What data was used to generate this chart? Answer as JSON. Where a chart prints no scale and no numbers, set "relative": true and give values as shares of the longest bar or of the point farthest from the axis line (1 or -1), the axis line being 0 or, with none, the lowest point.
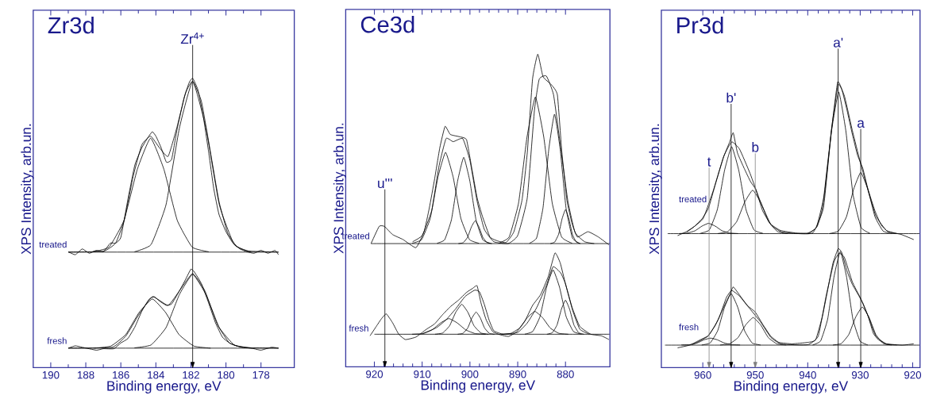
{
  "chart_data": [
    {
      "type": "line",
      "relative": true,
      "title": "Zr3d",
      "xlabel": "Binding energy, eV",
      "ylabel": "XPS Intensity, arb.un.",
      "xlim": [
        191,
        176.1
      ],
      "xticks": [
        190,
        188,
        186,
        184,
        182,
        180,
        178
      ],
      "tick_labels": "x",
      "ref_lines": [
        {
          "axis": "x",
          "value": 181.9,
          "label": "Zr$^{4+}$",
          "color": "#000000"
        }
      ],
      "series": [
        {
          "name": "treated",
          "color": "#000000",
          "x": [
            189,
            188.6,
            188.2,
            187.8,
            187.4,
            187,
            186.6,
            186.3,
            186,
            185.6,
            185.2,
            184.8,
            184.4,
            184.2,
            184,
            183.7,
            183.4,
            183.1,
            182.8,
            182.4,
            182.1,
            181.9,
            181.6,
            181.3,
            181,
            180.7,
            180.4,
            180,
            179.6,
            179.2,
            178.8,
            178.4,
            178,
            177.6,
            177.2,
            177
          ],
          "values": [
            0.4,
            0.39,
            0.41,
            0.395,
            0.405,
            0.4,
            0.43,
            0.43,
            0.45,
            0.58,
            0.7,
            0.76,
            0.8,
            0.815,
            0.8,
            0.76,
            0.71,
            0.72,
            0.82,
            0.93,
            0.985,
            1.0,
            0.96,
            0.87,
            0.75,
            0.62,
            0.53,
            0.47,
            0.43,
            0.41,
            0.4,
            0.395,
            0.405,
            0.395,
            0.405,
            0.39
          ]
        },
        {
          "color": "#000000",
          "x": [
            189,
            187,
            186.3,
            185.8,
            185.3,
            184.8,
            184.3,
            183.8,
            183.3,
            182.8,
            182.3,
            181.9,
            181.4,
            180.9,
            180.4,
            179.9,
            179.4,
            178.8,
            177
          ],
          "values": [
            0.399,
            0.402,
            0.43,
            0.51,
            0.66,
            0.77,
            0.8,
            0.76,
            0.73,
            0.83,
            0.95,
            0.99,
            0.92,
            0.75,
            0.575,
            0.465,
            0.42,
            0.403,
            0.399
          ]
        },
        {
          "color": "#000000",
          "x": [
            187.625,
            186.675,
            185.82,
            185.06,
            184.3,
            183.54,
            182.78,
            181.925,
            180.975
          ],
          "values": [
            0.4,
            0.416,
            0.509,
            0.685,
            0.793,
            0.685,
            0.509,
            0.416,
            0.4
          ]
        },
        {
          "color": "#000000",
          "x": [
            185.225,
            184.275,
            183.42,
            182.66,
            181.9,
            181.14,
            180.38,
            179.525,
            178.575
          ],
          "values": [
            0.4,
            0.425,
            0.563,
            0.827,
            0.989,
            0.827,
            0.563,
            0.425,
            0.4
          ]
        },
        {
          "color": "#000000",
          "x": [
            189,
            177
          ],
          "values": [
            0.399,
            0.399
          ]
        },
        {
          "name": "fresh",
          "color": "#000000",
          "x": [
            189,
            188.6,
            188.2,
            187.4,
            187,
            186.4,
            186,
            185.6,
            185.2,
            184.8,
            184.4,
            184.1,
            183.8,
            183.4,
            183.1,
            182.7,
            182.3,
            182,
            181.8,
            181.4,
            181,
            180.6,
            180.2,
            179.8,
            179.4,
            179,
            178.4,
            178,
            177.4,
            177
          ],
          "values": [
            0.067,
            0.075,
            0.07,
            0.06,
            0.065,
            0.065,
            0.085,
            0.1,
            0.14,
            0.195,
            0.235,
            0.245,
            0.23,
            0.215,
            0.22,
            0.26,
            0.305,
            0.34,
            0.33,
            0.29,
            0.225,
            0.155,
            0.105,
            0.085,
            0.075,
            0.07,
            0.065,
            0.06,
            0.07,
            0.067
          ]
        },
        {
          "color": "#000000",
          "x": [
            189,
            186.5,
            185.7,
            185,
            184.2,
            183.3,
            182.6,
            181.9,
            181.2,
            180.5,
            179.8,
            179,
            177
          ],
          "values": [
            0.067,
            0.07,
            0.11,
            0.18,
            0.245,
            0.215,
            0.27,
            0.325,
            0.265,
            0.15,
            0.085,
            0.069,
            0.067
          ]
        },
        {
          "color": "#000000",
          "x": [
            187.525,
            186.575,
            185.72,
            184.96,
            184.2,
            183.44,
            182.68,
            181.825,
            180.875
          ],
          "values": [
            0.067,
            0.074,
            0.114,
            0.19,
            0.237,
            0.19,
            0.114,
            0.074,
            0.067
          ]
        },
        {
          "color": "#000000",
          "x": [
            185.225,
            184.275,
            183.42,
            182.66,
            181.9,
            181.14,
            180.38,
            179.525,
            178.575
          ],
          "values": [
            0.068,
            0.078,
            0.138,
            0.252,
            0.322,
            0.252,
            0.138,
            0.078,
            0.068
          ]
        },
        {
          "color": "#000000",
          "x": [
            189,
            177
          ],
          "values": [
            0.067,
            0.067
          ]
        }
      ]
    },
    {
      "type": "line",
      "relative": true,
      "title": "Ce3d",
      "xlabel": "Binding energy, eV",
      "ylabel": "XPS Intensity, arb.un.",
      "xlim": [
        926,
        870.7
      ],
      "xticks": [
        920,
        910,
        900,
        890,
        880
      ],
      "tick_labels": "x",
      "ref_lines": [
        {
          "axis": "x",
          "value": 917.8,
          "label": "u'''",
          "color": "#000000"
        }
      ],
      "series": [
        {
          "name": "treated",
          "color": "#000000",
          "x": [
            920.7,
            919,
            917.9,
            916.2,
            914,
            911.3,
            909.6,
            908.5,
            907.4,
            906.3,
            905.2,
            904.1,
            901.9,
            900.7,
            899.6,
            898.5,
            897.4,
            895.8,
            894.1,
            892.4,
            890.8,
            889.1,
            888,
            886.9,
            885.8,
            884.7,
            883,
            881.7,
            880.8,
            879.7,
            878.6,
            877.5,
            875.3,
            873.1,
            870.9
          ],
          "values": [
            0.394,
            0.449,
            0.449,
            0.423,
            0.407,
            0.381,
            0.432,
            0.508,
            0.6,
            0.701,
            0.769,
            0.743,
            0.735,
            0.726,
            0.634,
            0.541,
            0.482,
            0.415,
            0.402,
            0.398,
            0.432,
            0.533,
            0.684,
            0.92,
            1.0,
            0.928,
            0.903,
            0.87,
            0.693,
            0.533,
            0.457,
            0.415,
            0.432,
            0.415,
            0.39
          ]
        },
        {
          "color": "#000000",
          "x": [
            912,
            910,
            908,
            906.5,
            905,
            903.5,
            901.5,
            900,
            898.5,
            897,
            895,
            892,
            890,
            888,
            886.5,
            885.5,
            884,
            882.5,
            881,
            879.5,
            878,
            876,
            874
          ],
          "values": [
            0.4,
            0.42,
            0.5,
            0.64,
            0.73,
            0.72,
            0.73,
            0.66,
            0.53,
            0.44,
            0.4,
            0.394,
            0.42,
            0.54,
            0.82,
            0.92,
            0.93,
            0.87,
            0.7,
            0.53,
            0.43,
            0.4,
            0.394
          ]
        },
        {
          "color": "#000000",
          "x": [
            912.1,
            910.1,
            908.3,
            906.7,
            905.1,
            903.5,
            901.9,
            900.1,
            898.1
          ],
          "values": [
            0.395,
            0.407,
            0.475,
            0.606,
            0.686,
            0.606,
            0.475,
            0.407,
            0.395
          ]
        },
        {
          "color": "#000000",
          "x": [
            906.9,
            905.3,
            903.86,
            902.58,
            901.3,
            900.02,
            898.74,
            897.3,
            895.7
          ],
          "values": [
            0.395,
            0.406,
            0.471,
            0.594,
            0.67,
            0.594,
            0.471,
            0.406,
            0.395
          ]
        },
        {
          "color": "#000000",
          "x": [
            902.4,
            901.4,
            900.5,
            899.7,
            898.9,
            898.1,
            897.3,
            896.4,
            895.4
          ],
          "values": [
            0.394,
            0.397,
            0.414,
            0.447,
            0.467,
            0.447,
            0.414,
            0.397,
            0.394
          ]
        },
        {
          "color": "#000000",
          "x": [
            894.0,
            891.8,
            889.82,
            888.06,
            886.3,
            884.54,
            882.78,
            880.8,
            878.6
          ],
          "values": [
            0.395,
            0.415,
            0.524,
            0.734,
            0.863,
            0.734,
            0.524,
            0.415,
            0.395
          ]
        },
        {
          "color": "#000000",
          "x": [
            887.55,
            886.05,
            884.7,
            883.5,
            882.3,
            881.1,
            879.9,
            878.55,
            877.05
          ],
          "values": [
            0.395,
            0.412,
            0.509,
            0.695,
            0.808,
            0.695,
            0.509,
            0.412,
            0.395
          ]
        },
        {
          "color": "#000000",
          "x": [
            883.15,
            882.25,
            881.44,
            880.72,
            880,
            879.28,
            878.56,
            877.75,
            876.85
          ],
          "values": [
            0.394,
            0.399,
            0.424,
            0.473,
            0.503,
            0.473,
            0.424,
            0.399,
            0.394
          ]
        },
        {
          "color": "#000000",
          "x": [
            920.7,
            870.8
          ],
          "values": [
            0.394,
            0.394
          ]
        },
        {
          "name": "fresh",
          "color": "#000000",
          "x": [
            920.9,
            919.6,
            918.5,
            917.5,
            916.2,
            914.9,
            913.5,
            911.3,
            909.1,
            907.4,
            905.7,
            904.1,
            902.4,
            900.7,
            899.4,
            898.5,
            897.7,
            896.6,
            895.2,
            893.6,
            891.9,
            890.2,
            888.5,
            886.9,
            885.2,
            883.6,
            882.2,
            881.1,
            880,
            878.6,
            877,
            874.7,
            872.5,
            870.9
          ],
          "values": [
            0.099,
            0.129,
            0.154,
            0.169,
            0.141,
            0.104,
            0.087,
            0.095,
            0.12,
            0.137,
            0.167,
            0.192,
            0.213,
            0.238,
            0.251,
            0.259,
            0.205,
            0.15,
            0.112,
            0.102,
            0.097,
            0.112,
            0.146,
            0.196,
            0.231,
            0.289,
            0.364,
            0.332,
            0.265,
            0.189,
            0.129,
            0.104,
            0.099,
            0.087
          ]
        },
        {
          "color": "#000000",
          "x": [
            910,
            907,
            905,
            903,
            901,
            899,
            898,
            897,
            896,
            895,
            893,
            890,
            888,
            886,
            884,
            882.6,
            881,
            880,
            878.5,
            877,
            875
          ],
          "values": [
            0.105,
            0.125,
            0.15,
            0.185,
            0.225,
            0.245,
            0.24,
            0.2,
            0.15,
            0.115,
            0.104,
            0.11,
            0.14,
            0.19,
            0.26,
            0.32,
            0.3,
            0.265,
            0.18,
            0.12,
            0.104
          ]
        },
        {
          "color": "#000000",
          "x": [
            912.1,
            909.9,
            907.92,
            906.16,
            904.4,
            902.64,
            900.88,
            898.9,
            896.7
          ],
          "values": [
            0.104,
            0.106,
            0.118,
            0.14,
            0.154,
            0.14,
            0.118,
            0.106,
            0.104
          ]
        },
        {
          "color": "#000000",
          "x": [
            907.3,
            905.7,
            904.26,
            902.98,
            901.7,
            900.42,
            899.14,
            897.7,
            896.1
          ],
          "values": [
            0.104,
            0.108,
            0.131,
            0.174,
            0.2,
            0.174,
            0.131,
            0.108,
            0.104
          ]
        },
        {
          "color": "#000000",
          "x": [
            902.55,
            901.45,
            900.46,
            899.58,
            898.7,
            897.82,
            896.94,
            895.95,
            894.85
          ],
          "values": [
            0.104,
            0.107,
            0.124,
            0.156,
            0.175,
            0.156,
            0.124,
            0.107,
            0.104
          ]
        },
        {
          "color": "#000000",
          "x": [
            893.4,
            891.4,
            889.6,
            888.0,
            886.4,
            884.8,
            883.2,
            881.4,
            879.4
          ],
          "values": [
            0.104,
            0.107,
            0.124,
            0.157,
            0.177,
            0.157,
            0.124,
            0.107,
            0.104
          ]
        },
        {
          "color": "#000000",
          "x": [
            888.55,
            886.85,
            885.32,
            883.96,
            882.6,
            881.24,
            879.88,
            878.35,
            876.65
          ],
          "values": [
            0.104,
            0.113,
            0.161,
            0.254,
            0.31,
            0.254,
            0.161,
            0.113,
            0.104
          ]
        },
        {
          "color": "#000000",
          "x": [
            883.85,
            882.75,
            881.76,
            880.88,
            880,
            879.12,
            878.24,
            877.25,
            876.15
          ],
          "values": [
            0.104,
            0.109,
            0.134,
            0.183,
            0.213,
            0.183,
            0.134,
            0.109,
            0.104
          ]
        },
        {
          "color": "#000000",
          "x": [
            920,
            870.8
          ],
          "values": [
            0.104,
            0.104
          ]
        }
      ]
    },
    {
      "type": "line",
      "relative": true,
      "title": "Pr3d",
      "xlabel": "Binding energy, eV",
      "ylabel": "XPS Intensity, arb.un.",
      "xlim": [
        967.9,
        918.6
      ],
      "xticks": [
        960,
        950,
        940,
        930,
        920
      ],
      "tick_labels": "x",
      "ref_lines": [
        {
          "axis": "x",
          "value": 958.8,
          "label": "t",
          "color": "#808080"
        },
        {
          "axis": "x",
          "value": 954.6,
          "label": "b'",
          "color": "#000000"
        },
        {
          "axis": "x",
          "value": 950.0,
          "label": "b",
          "color": "#808080"
        },
        {
          "axis": "x",
          "value": 934.2,
          "label": "a'",
          "color": "#000000"
        },
        {
          "axis": "x",
          "value": 929.9,
          "label": "a",
          "color": "#000000"
        }
      ],
      "series": [
        {
          "name": "treated",
          "color": "#000000",
          "x": [
            964.8,
            963.1,
            961.6,
            960.1,
            958.9,
            957.6,
            956.1,
            954.9,
            954.2,
            953.4,
            952.1,
            950.9,
            949.9,
            948.6,
            947.1,
            945.2,
            942.2,
            939.7,
            938.2,
            937.2,
            936.2,
            935.2,
            934.3,
            933.5,
            932.5,
            931.5,
            930.5,
            929.5,
            928.5,
            927.2,
            926,
            924.7,
            922.2,
            919.8
          ],
          "values": [
            0.462,
            0.476,
            0.494,
            0.522,
            0.559,
            0.642,
            0.734,
            0.789,
            0.822,
            0.752,
            0.697,
            0.651,
            0.623,
            0.549,
            0.503,
            0.48,
            0.471,
            0.471,
            0.494,
            0.559,
            0.716,
            0.873,
            1.0,
            0.974,
            0.9,
            0.817,
            0.743,
            0.697,
            0.623,
            0.549,
            0.499,
            0.476,
            0.466,
            0.448
          ]
        },
        {
          "color": "#000000",
          "x": [
            963,
            960,
            958,
            956,
            954.5,
            953,
            951,
            949,
            947,
            945,
            942,
            939,
            937,
            935.5,
            934.2,
            933,
            931.5,
            930,
            928.5,
            927,
            925,
            923
          ],
          "values": [
            0.475,
            0.52,
            0.62,
            0.74,
            0.79,
            0.765,
            0.68,
            0.58,
            0.5,
            0.475,
            0.469,
            0.472,
            0.56,
            0.83,
            0.99,
            0.95,
            0.83,
            0.72,
            0.62,
            0.53,
            0.48,
            0.469
          ]
        },
        {
          "color": "#000000",
          "x": [
            964.5,
            962.9,
            961.46,
            960.18,
            958.9,
            957.62,
            956.34,
            954.9,
            953.3
          ],
          "values": [
            0.469,
            0.471,
            0.479,
            0.495,
            0.505,
            0.495,
            0.479,
            0.471,
            0.469
          ]
        },
        {
          "color": "#000000",
          "x": [
            960.45,
            958.75,
            957.22,
            955.86,
            954.5,
            953.14,
            951.78,
            950.25,
            948.55
          ],
          "values": [
            0.47,
            0.482,
            0.554,
            0.69,
            0.773,
            0.69,
            0.554,
            0.482,
            0.47
          ]
        },
        {
          "color": "#000000",
          "x": [
            957.15,
            955.25,
            953.54,
            952.02,
            950.5,
            948.98,
            947.46,
            945.75,
            943.85
          ],
          "values": [
            0.469,
            0.476,
            0.511,
            0.579,
            0.621,
            0.579,
            0.511,
            0.476,
            0.469
          ]
        },
        {
          "color": "#000000",
          "x": [
            940.05,
            938.35,
            936.82,
            935.46,
            934.1,
            932.74,
            931.38,
            929.85,
            928.15
          ],
          "values": [
            0.47,
            0.491,
            0.607,
            0.829,
            0.965,
            0.829,
            0.607,
            0.491,
            0.47
          ]
        },
        {
          "color": "#000000",
          "x": [
            935.85,
            934.15,
            932.62,
            931.26,
            929.9,
            928.54,
            927.18,
            925.65,
            923.95
          ],
          "values": [
            0.469,
            0.478,
            0.528,
            0.624,
            0.683,
            0.624,
            0.528,
            0.478,
            0.469
          ]
        },
        {
          "color": "#000000",
          "x": [
            966.7,
            918.7
          ],
          "values": [
            0.469,
            0.469
          ]
        },
        {
          "name": "fresh",
          "color": "#000000",
          "x": [
            964.8,
            962.5,
            960.5,
            959,
            957.6,
            956.1,
            954.9,
            954.2,
            953,
            951.5,
            950,
            948.6,
            947.1,
            945.5,
            943,
            940,
            938.5,
            937.2,
            936.2,
            935.2,
            934.2,
            933.5,
            932.5,
            931.5,
            930.5,
            929.5,
            928.5,
            927.5,
            926.5,
            925,
            922,
            919.8
          ],
          "values": [
            0.069,
            0.0785,
            0.097,
            0.111,
            0.148,
            0.208,
            0.254,
            0.282,
            0.254,
            0.217,
            0.194,
            0.152,
            0.111,
            0.088,
            0.083,
            0.088,
            0.097,
            0.18,
            0.272,
            0.365,
            0.416,
            0.402,
            0.337,
            0.291,
            0.259,
            0.226,
            0.18,
            0.12,
            0.097,
            0.083,
            0.0785,
            0.083
          ]
        },
        {
          "color": "#000000",
          "x": [
            962,
            959,
            957,
            955.5,
            954.5,
            953,
            951,
            949,
            947,
            945,
            940,
            938,
            936.5,
            935,
            934,
            933,
            931.5,
            930,
            928.5,
            927,
            925,
            923
          ],
          "values": [
            0.08,
            0.11,
            0.17,
            0.245,
            0.27,
            0.25,
            0.205,
            0.16,
            0.105,
            0.082,
            0.08,
            0.11,
            0.25,
            0.37,
            0.4,
            0.385,
            0.3,
            0.245,
            0.18,
            0.11,
            0.082,
            0.079
          ]
        },
        {
          "color": "#000000",
          "x": [
            964.1,
            962.5,
            961.06,
            959.78,
            958.5,
            957.22,
            955.94,
            954.5,
            952.9
          ],
          "values": [
            0.079,
            0.08,
            0.086,
            0.097,
            0.103,
            0.097,
            0.086,
            0.08,
            0.079
          ]
        },
        {
          "color": "#000000",
          "x": [
            960.2,
            958.6,
            957.16,
            955.88,
            954.6,
            953.32,
            952.04,
            950.6,
            949.0
          ],
          "values": [
            0.079,
            0.086,
            0.129,
            0.21,
            0.259,
            0.21,
            0.129,
            0.086,
            0.079
          ]
        },
        {
          "color": "#000000",
          "x": [
            956.7,
            954.9,
            953.28,
            951.84,
            950.4,
            948.96,
            947.52,
            945.9,
            944.1
          ],
          "values": [
            0.079,
            0.083,
            0.105,
            0.149,
            0.175,
            0.149,
            0.105,
            0.083,
            0.079
          ]
        },
        {
          "color": "#000000",
          "x": [
            939.05,
            937.55,
            936.2,
            935.0,
            933.8,
            932.6,
            931.4,
            930.05,
            928.55
          ],
          "values": [
            0.079,
            0.093,
            0.17,
            0.317,
            0.406,
            0.317,
            0.17,
            0.093,
            0.079
          ]
        },
        {
          "color": "#000000",
          "x": [
            935.2,
            933.6,
            932.16,
            930.88,
            929.6,
            928.32,
            927.04,
            925.6,
            924.0
          ],
          "values": [
            0.079,
            0.084,
            0.116,
            0.176,
            0.212,
            0.176,
            0.116,
            0.084,
            0.079
          ]
        },
        {
          "color": "#000000",
          "x": [
            967.2,
            918.7
          ],
          "values": [
            0.0785,
            0.0785
          ]
        }
      ]
    }
  ]
}
